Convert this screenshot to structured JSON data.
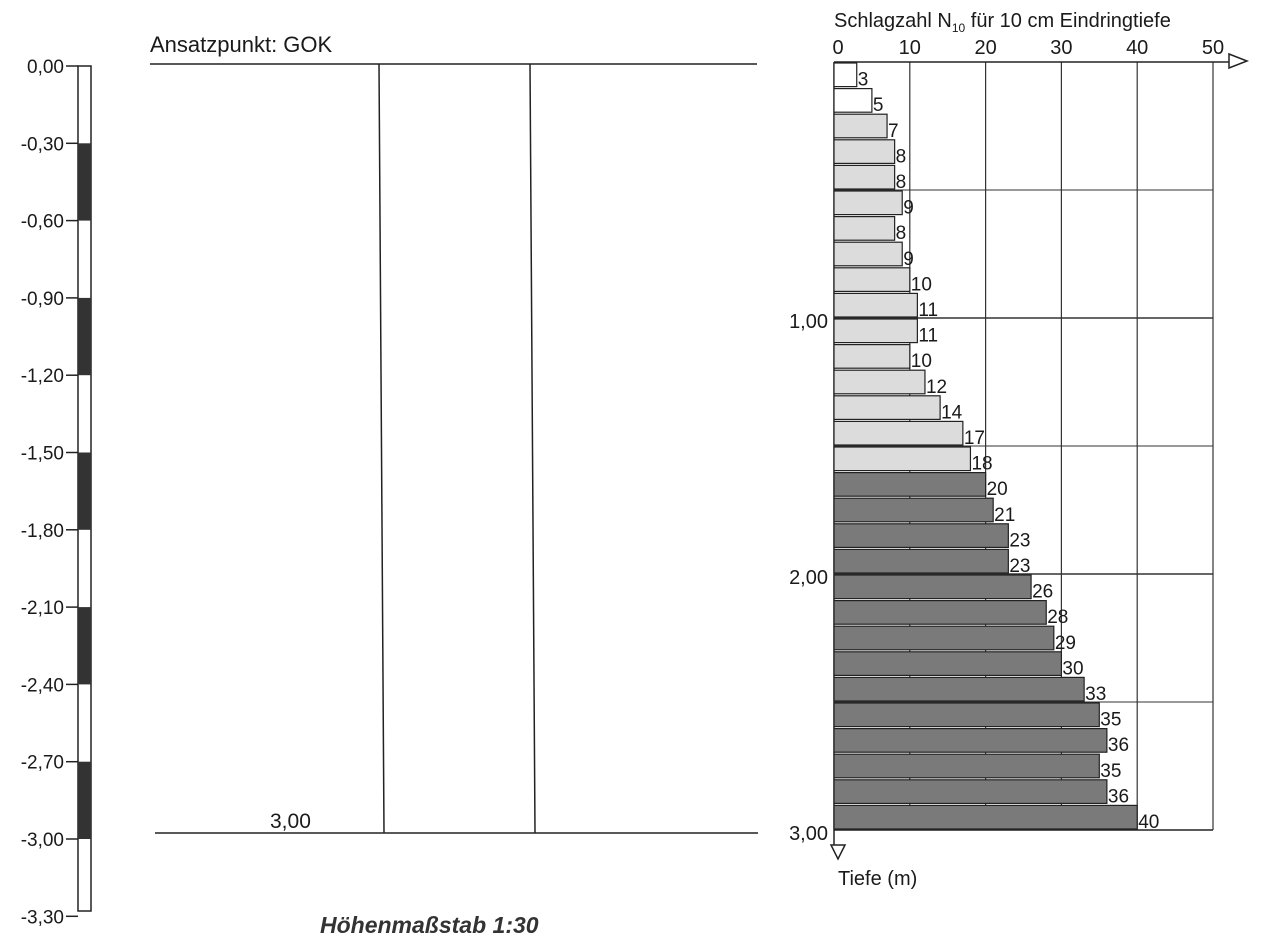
{
  "scale_bar": {
    "tick_labels": [
      "0,00",
      "-0,30",
      "-0,60",
      "-0,90",
      "-1,20",
      "-1,50",
      "-1,80",
      "-2,10",
      "-2,40",
      "-2,70",
      "-3,00",
      "-3,30"
    ]
  },
  "profile": {
    "start_label": "Ansatzpunkt: GOK",
    "end_depth_label": "3,00"
  },
  "scale_title": "Höhenmaßstab 1:30",
  "chart_data": {
    "type": "bar",
    "orientation": "horizontal",
    "title_main": "Schlagzahl N",
    "title_sub": "10",
    "title_rest": " für 10 cm Eindringtiefe",
    "ylabel": "Tiefe (m)",
    "x_ticks": [
      "0",
      "10",
      "20",
      "30",
      "40",
      "50"
    ],
    "xlim": [
      0,
      50
    ],
    "y_ticks": [
      "1,00",
      "2,00",
      "3,00"
    ],
    "ylim": [
      0,
      3.0
    ],
    "interval_m": 0.1,
    "depths_from": [
      0.0,
      0.1,
      0.2,
      0.3,
      0.4,
      0.5,
      0.6,
      0.7,
      0.8,
      0.9,
      1.0,
      1.1,
      1.2,
      1.3,
      1.4,
      1.5,
      1.6,
      1.7,
      1.8,
      1.9,
      2.0,
      2.1,
      2.2,
      2.3,
      2.4,
      2.5,
      2.6,
      2.7,
      2.8,
      2.9
    ],
    "values": [
      3,
      5,
      7,
      8,
      8,
      9,
      8,
      9,
      10,
      11,
      11,
      10,
      12,
      14,
      17,
      18,
      20,
      21,
      23,
      23,
      26,
      28,
      29,
      30,
      33,
      35,
      36,
      35,
      36,
      40
    ],
    "fill_colors": {
      "upper": "#ffffff",
      "middle": "#dcdcdc",
      "lower": "#7a7a7a"
    },
    "grid": true
  }
}
